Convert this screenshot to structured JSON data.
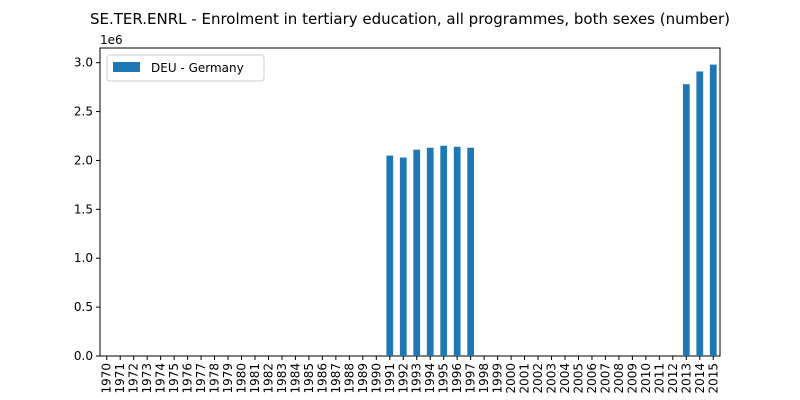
{
  "chart_data": {
    "type": "bar",
    "title": "SE.TER.ENRL - Enrolment in tertiary education, all programmes, both sexes (number)",
    "xlabel": "",
    "ylabel": "",
    "y_offset_label": "1e6",
    "ylim": [
      0,
      3.15
    ],
    "y_ticks": [
      "0.0",
      "0.5",
      "1.0",
      "1.5",
      "2.0",
      "2.5",
      "3.0"
    ],
    "legend_position": "top-left",
    "color": "#1f77b4",
    "categories": [
      "1970",
      "1971",
      "1972",
      "1973",
      "1974",
      "1975",
      "1976",
      "1977",
      "1978",
      "1979",
      "1980",
      "1981",
      "1982",
      "1983",
      "1984",
      "1985",
      "1986",
      "1987",
      "1988",
      "1989",
      "1990",
      "1991",
      "1992",
      "1993",
      "1994",
      "1995",
      "1996",
      "1997",
      "1998",
      "1999",
      "2000",
      "2001",
      "2002",
      "2003",
      "2004",
      "2005",
      "2006",
      "2007",
      "2008",
      "2009",
      "2010",
      "2011",
      "2012",
      "2013",
      "2014",
      "2015"
    ],
    "series": [
      {
        "name": "DEU - Germany",
        "values": [
          null,
          null,
          null,
          null,
          null,
          null,
          null,
          null,
          null,
          null,
          null,
          null,
          null,
          null,
          null,
          null,
          null,
          null,
          null,
          null,
          null,
          2.05,
          2.03,
          2.11,
          2.13,
          2.15,
          2.14,
          2.13,
          null,
          null,
          null,
          null,
          null,
          null,
          null,
          null,
          null,
          null,
          null,
          null,
          null,
          null,
          null,
          2.78,
          2.91,
          2.98
        ]
      }
    ]
  }
}
